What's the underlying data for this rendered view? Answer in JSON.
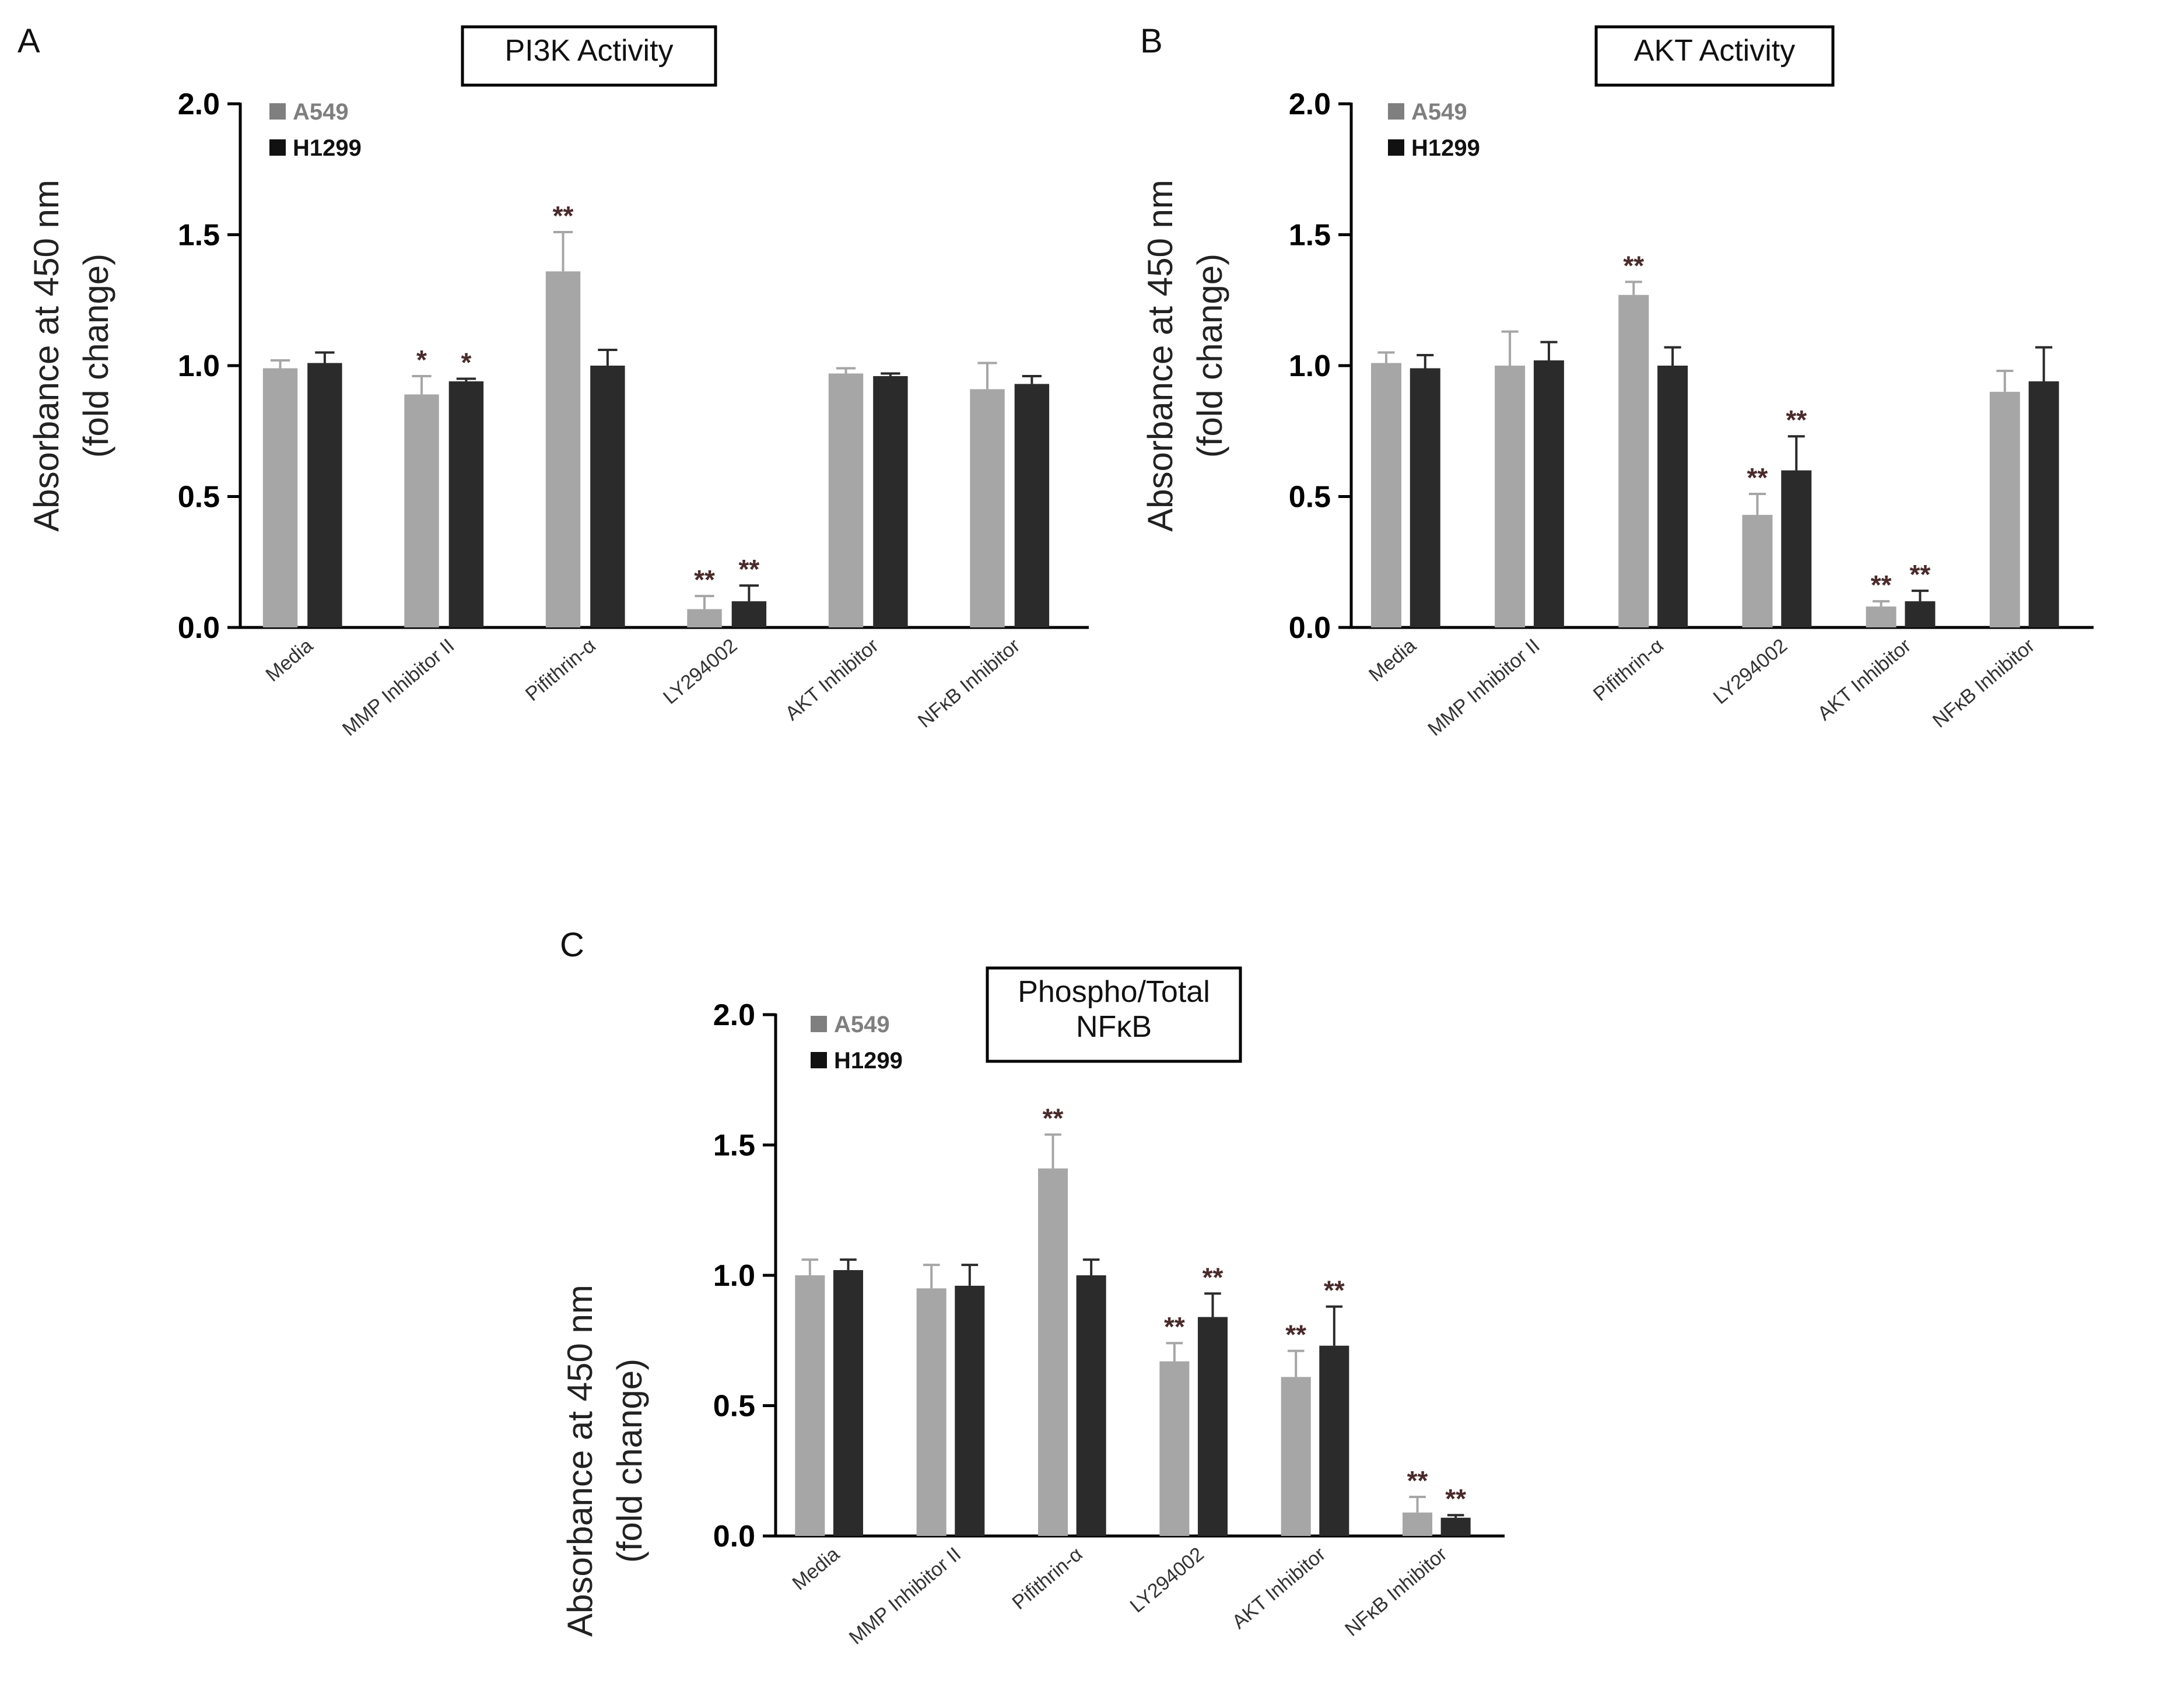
{
  "chart_data": [
    {
      "panel": "A",
      "type": "bar",
      "title": "PI3K Activity",
      "title_lines": [
        "PI3K Activity"
      ],
      "ylabel_lines": [
        "Absorbance at 450 nm",
        "(fold change)"
      ],
      "ylim": [
        0,
        2.0
      ],
      "yticks": [
        "0.0",
        "0.5",
        "1.0",
        "1.5",
        "2.0"
      ],
      "categories": [
        "Media",
        "MMP Inhibitor II",
        "Pifithrin-α",
        "LY294002",
        "AKT Inhibitor",
        "NFκB Inhibitor"
      ],
      "series": [
        {
          "name": "A549",
          "color": "#a6a6a6",
          "legend_color": "#7f7f7f",
          "values": [
            0.99,
            0.89,
            1.36,
            0.07,
            0.97,
            0.91
          ],
          "errors": [
            0.03,
            0.07,
            0.15,
            0.05,
            0.02,
            0.1
          ],
          "sig": [
            "",
            "*",
            "**",
            "**",
            "",
            ""
          ]
        },
        {
          "name": "H1299",
          "color": "#2b2b2b",
          "legend_color": "#111111",
          "values": [
            1.01,
            0.94,
            1.0,
            0.1,
            0.96,
            0.93
          ],
          "errors": [
            0.04,
            0.01,
            0.06,
            0.06,
            0.01,
            0.03
          ],
          "sig": [
            "",
            "*",
            "",
            "**",
            "",
            ""
          ]
        }
      ]
    },
    {
      "panel": "B",
      "type": "bar",
      "title": "AKT Activity",
      "title_lines": [
        "AKT Activity"
      ],
      "ylabel_lines": [
        "Absorbance at 450 nm",
        "(fold change)"
      ],
      "ylim": [
        0,
        2.0
      ],
      "yticks": [
        "0.0",
        "0.5",
        "1.0",
        "1.5",
        "2.0"
      ],
      "categories": [
        "Media",
        "MMP Inhibitor II",
        "Pifithrin-α",
        "LY294002",
        "AKT Inhibitor",
        "NFκB Inhibitor"
      ],
      "series": [
        {
          "name": "A549",
          "color": "#a6a6a6",
          "legend_color": "#7f7f7f",
          "values": [
            1.01,
            1.0,
            1.27,
            0.43,
            0.08,
            0.9
          ],
          "errors": [
            0.04,
            0.13,
            0.05,
            0.08,
            0.02,
            0.08
          ],
          "sig": [
            "",
            "",
            "**",
            "**",
            "**",
            ""
          ]
        },
        {
          "name": "H1299",
          "color": "#2b2b2b",
          "legend_color": "#111111",
          "values": [
            0.99,
            1.02,
            1.0,
            0.6,
            0.1,
            0.94
          ],
          "errors": [
            0.05,
            0.07,
            0.07,
            0.13,
            0.04,
            0.13
          ],
          "sig": [
            "",
            "",
            "",
            "**",
            "**",
            ""
          ]
        }
      ]
    },
    {
      "panel": "C",
      "type": "bar",
      "title": "Phospho/Total NFκB",
      "title_lines": [
        "Phospho/Total",
        "NFκB"
      ],
      "ylabel_lines": [
        "Absorbance at 450 nm",
        "(fold change)"
      ],
      "ylim": [
        0,
        2.0
      ],
      "yticks": [
        "0.0",
        "0.5",
        "1.0",
        "1.5",
        "2.0"
      ],
      "categories": [
        "Media",
        "MMP Inhibitor II",
        "Pifithrin-α",
        "LY294002",
        "AKT Inhibitor",
        "NFκB Inhibitor"
      ],
      "series": [
        {
          "name": "A549",
          "color": "#a6a6a6",
          "legend_color": "#7f7f7f",
          "values": [
            1.0,
            0.95,
            1.41,
            0.67,
            0.61,
            0.09
          ],
          "errors": [
            0.06,
            0.09,
            0.13,
            0.07,
            0.1,
            0.06
          ],
          "sig": [
            "",
            "",
            "**",
            "**",
            "**",
            "**"
          ]
        },
        {
          "name": "H1299",
          "color": "#2b2b2b",
          "legend_color": "#111111",
          "values": [
            1.02,
            0.96,
            1.0,
            0.84,
            0.73,
            0.07
          ],
          "errors": [
            0.04,
            0.08,
            0.06,
            0.09,
            0.15,
            0.01
          ],
          "sig": [
            "",
            "",
            "",
            "**",
            "**",
            "**"
          ]
        }
      ]
    }
  ]
}
